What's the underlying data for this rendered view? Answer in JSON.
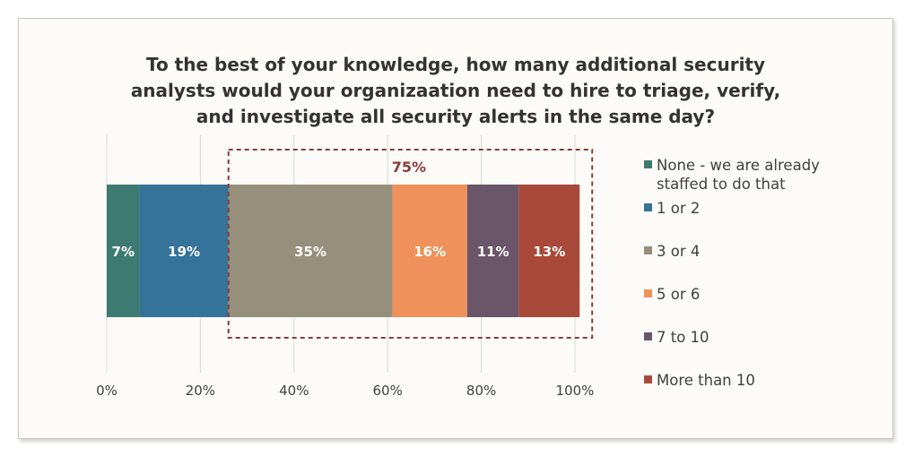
{
  "chart_data": {
    "type": "bar",
    "orientation": "horizontal-stacked-100",
    "title": "To the best of your knowledge, how many additional security analysts would your organizaation need to hire to triage, verify, and investigate all security alerts in the same day?",
    "title_lines": [
      "To the best of your knowledge, how many additional security",
      "analysts would your organizaation need to hire to triage, verify,",
      "and investigate all security alerts in the same day?"
    ],
    "series": [
      {
        "name": "None - we are already staffed to do that",
        "value": 7,
        "label": "7%",
        "color": "#3d7b72"
      },
      {
        "name": "1 or 2",
        "value": 19,
        "label": "19%",
        "color": "#35739a"
      },
      {
        "name": "3 or 4",
        "value": 35,
        "label": "35%",
        "color": "#968f7c"
      },
      {
        "name": "5 or 6",
        "value": 16,
        "label": "16%",
        "color": "#ef915a"
      },
      {
        "name": "7 to 10",
        "value": 11,
        "label": "11%",
        "color": "#6a5668"
      },
      {
        "name": "More than 10",
        "value": 13,
        "label": "13%",
        "color": "#a9493a"
      }
    ],
    "xlim": [
      0,
      100
    ],
    "x_ticks": [
      "0%",
      "20%",
      "40%",
      "60%",
      "80%",
      "100%"
    ],
    "grid": true,
    "legend_position": "right",
    "annotation": {
      "text": "75%",
      "color": "#8b3a3a",
      "covers_series": [
        "3 or 4",
        "5 or 6",
        "7 to 10",
        "More than 10"
      ]
    }
  }
}
